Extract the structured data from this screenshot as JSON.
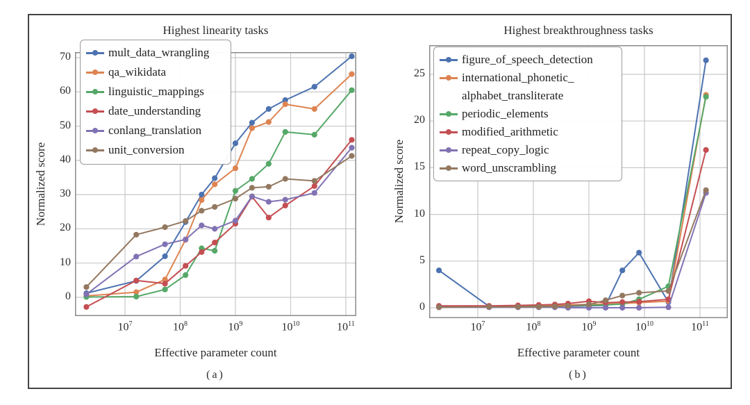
{
  "figure": {
    "border_color": "#444444",
    "background": "#ffffff",
    "grid_color": "#c9c9c9",
    "spine_color": "#8a8a8a"
  },
  "chart_data": [
    {
      "id": "a",
      "type": "line",
      "title": "Highest linearity tasks",
      "xlabel": "Effective parameter count",
      "ylabel": "Normalized score",
      "sublabel": "(a)",
      "x_scale": "log",
      "x_tick_exponents": [
        7,
        8,
        9,
        10,
        11
      ],
      "y_ticks": [
        0,
        10,
        20,
        30,
        40,
        50,
        60,
        70
      ],
      "x_range_log10": [
        6.09,
        11.19
      ],
      "y_range": [
        -5.5,
        71.6
      ],
      "grid": true,
      "legend_position": "upper left",
      "x": [
        2000000,
        16000000,
        53000000,
        125000000,
        244000000,
        422000000,
        1000000000,
        2000000000,
        4000000000,
        8000000000,
        27000000000,
        128000000000
      ],
      "series": [
        {
          "name": "mult_data_wrangling",
          "color": "#4C72B0",
          "values": [
            1.2,
            4.8,
            12.0,
            22.0,
            30.0,
            34.8,
            45.0,
            51.0,
            55.0,
            57.6,
            61.5,
            70.4
          ]
        },
        {
          "name": "qa_wikidata",
          "color": "#DD8452",
          "values": [
            0.4,
            1.5,
            5.2,
            16.8,
            28.4,
            33.0,
            37.7,
            49.4,
            51.2,
            56.4,
            55.0,
            65.2
          ]
        },
        {
          "name": "linguistic_mappings",
          "color": "#55A868",
          "values": [
            0.1,
            0.2,
            2.3,
            6.5,
            14.3,
            13.6,
            31.1,
            34.6,
            39.0,
            48.3,
            47.5,
            60.5
          ]
        },
        {
          "name": "date_understanding",
          "color": "#C44E52",
          "values": [
            -2.8,
            4.9,
            4.0,
            9.2,
            13.2,
            16.0,
            21.5,
            29.4,
            23.3,
            26.8,
            32.5,
            46.0
          ]
        },
        {
          "name": "conlang_translation",
          "color": "#8172B3",
          "values": [
            0.9,
            11.9,
            15.5,
            16.9,
            21.0,
            20.0,
            22.4,
            29.5,
            27.9,
            28.5,
            30.5,
            43.7
          ]
        },
        {
          "name": "unit_conversion",
          "color": "#937860",
          "values": [
            3.0,
            18.3,
            20.5,
            22.3,
            25.3,
            26.4,
            28.8,
            32.0,
            32.3,
            34.6,
            34.0,
            41.3
          ]
        }
      ]
    },
    {
      "id": "b",
      "type": "line",
      "title": "Highest breakthroughness tasks",
      "xlabel": "Effective parameter count",
      "ylabel": "Normalized score",
      "sublabel": "(b)",
      "x_scale": "log",
      "x_tick_exponents": [
        7,
        8,
        9,
        10,
        11
      ],
      "y_ticks": [
        0,
        5,
        10,
        15,
        20,
        25
      ],
      "x_range_log10": [
        6.12,
        11.5
      ],
      "y_range": [
        -1.1,
        28.1
      ],
      "grid": true,
      "legend_position": "upper left",
      "x": [
        2000000,
        16000000,
        53000000,
        125000000,
        244000000,
        422000000,
        1000000000,
        2000000000,
        4000000000,
        8000000000,
        27000000000,
        128000000000
      ],
      "series": [
        {
          "name": "figure_of_speech_detection",
          "color": "#4C72B0",
          "values": [
            4.0,
            0.15,
            0.15,
            0.2,
            0.2,
            0.15,
            0.2,
            0.25,
            4.0,
            5.9,
            0.6,
            26.5
          ]
        },
        {
          "name": "international_phonetic_alphabet_transliterate",
          "legend_label": "international_phonetic_\nalphabet_transliterate",
          "color": "#DD8452",
          "values": [
            0.1,
            0.1,
            0.15,
            0.2,
            0.25,
            0.3,
            0.35,
            0.4,
            0.45,
            0.55,
            0.7,
            22.8
          ]
        },
        {
          "name": "periodic_elements",
          "color": "#55A868",
          "values": [
            0.1,
            0.1,
            0.1,
            0.15,
            0.15,
            0.2,
            0.25,
            0.3,
            0.4,
            0.9,
            2.3,
            22.6
          ]
        },
        {
          "name": "modified_arithmetic",
          "color": "#C44E52",
          "values": [
            0.2,
            0.2,
            0.25,
            0.3,
            0.35,
            0.45,
            0.7,
            0.55,
            0.6,
            0.65,
            0.9,
            16.9
          ]
        },
        {
          "name": "repeat_copy_logic",
          "color": "#8172B3",
          "values": [
            0.05,
            0.05,
            0.05,
            0.05,
            0.05,
            0.0,
            0.0,
            0.0,
            0.0,
            0.0,
            0.05,
            12.3
          ]
        },
        {
          "name": "word_unscrambling",
          "color": "#937860",
          "values": [
            0.05,
            0.1,
            0.1,
            0.1,
            0.15,
            0.2,
            0.35,
            0.8,
            1.3,
            1.6,
            1.8,
            12.6
          ]
        }
      ]
    }
  ]
}
